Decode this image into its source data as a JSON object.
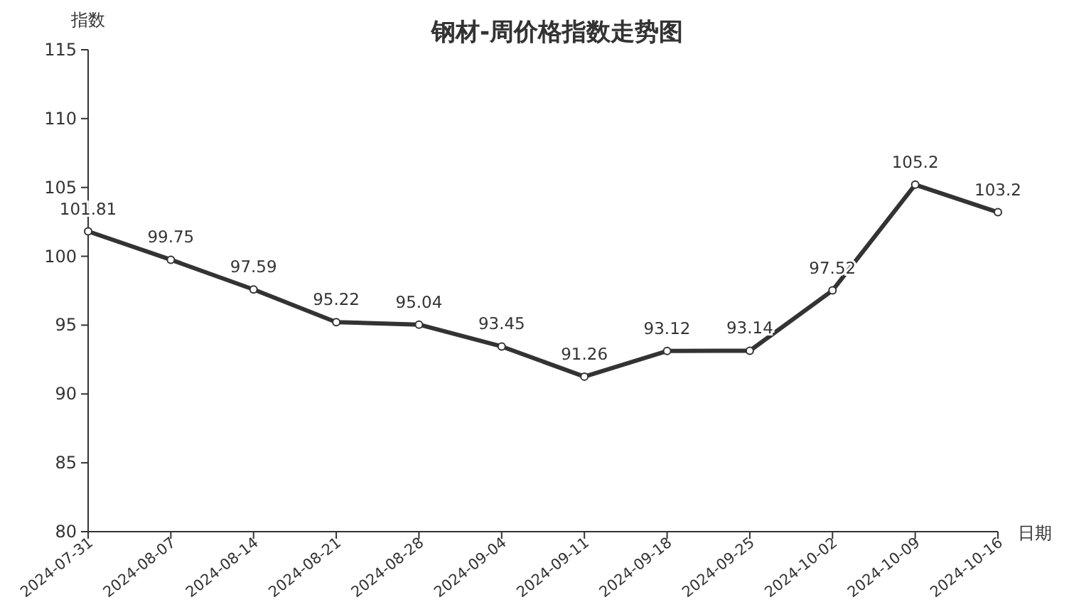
{
  "chart_data": {
    "type": "line",
    "title": "钢材-周价格指数走势图",
    "ylabel": "指数",
    "xlabel": "日期",
    "categories": [
      "2024-07-31",
      "2024-08-07",
      "2024-08-14",
      "2024-08-21",
      "2024-08-28",
      "2024-09-04",
      "2024-09-11",
      "2024-09-18",
      "2024-09-25",
      "2024-10-02",
      "2024-10-09",
      "2024-10-16"
    ],
    "series": [
      {
        "color": "#333333",
        "values": [
          101.81,
          99.75,
          97.59,
          95.22,
          95.04,
          93.45,
          91.26,
          93.12,
          93.14,
          97.52,
          105.2,
          103.2
        ]
      }
    ],
    "ylim": [
      80,
      115
    ],
    "yticks": [
      80,
      85,
      90,
      95,
      100,
      105,
      110,
      115
    ],
    "marker": "circle",
    "line_style": "solid",
    "data_labels": true,
    "grid": false
  }
}
